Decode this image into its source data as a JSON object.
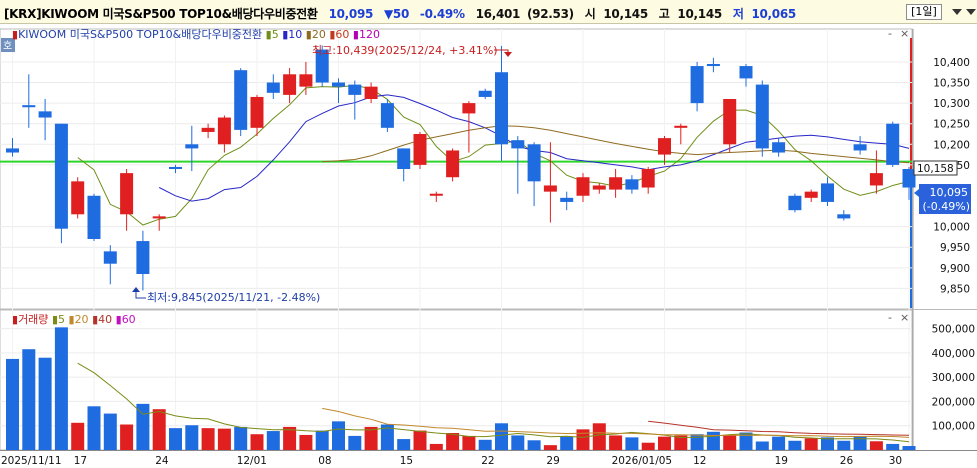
{
  "header": {
    "exchange": "[KRX]",
    "name": "KIWOOM 미국S&P500 TOP10&배당다우비중전환",
    "price": "10,095",
    "change": "▼50",
    "change_pct": "-0.49%",
    "volume": "16,401",
    "volume_ratio": "(92.53)",
    "open_label": "시",
    "open": "10,145",
    "high_label": "고",
    "high": "10,145",
    "low_label": "저",
    "low": "10,065",
    "period": "[1일]"
  },
  "panel": {
    "side_label": "호",
    "close_buttons": [
      "-",
      "×"
    ]
  },
  "colors": {
    "up": "#e02020",
    "down": "#1f6ce0",
    "ma5": "#6f8f19",
    "ma10": "#2727c9",
    "ma20": "#8f6b22",
    "ma60": "#c4391c",
    "ma120": "#b400b4",
    "hline": "#2ed52a",
    "vol_ma5": "#7c8b16",
    "vol_ma20": "#c08a2c",
    "vol_ma40": "#b4342a",
    "vol_ma60": "#c20fc2"
  },
  "price_legend": {
    "name": "KIWOOM 미국S&P500 TOP10&배당다우비중전환",
    "ma": [
      "5",
      "10",
      "20",
      "60",
      "120"
    ]
  },
  "volume_legend": {
    "name": "거래량",
    "ma": [
      "5",
      "20",
      "40",
      "60"
    ]
  },
  "annotations": {
    "high": "최고:10,439(2025/12/24, +3.41%)",
    "low": "최저:9,845(2025/11/21, -2.48%)"
  },
  "price_axis": {
    "ticks": [
      "10,400",
      "10,350",
      "10,300",
      "10,250",
      "10,200",
      "10,150",
      "10,000",
      "9,950",
      "9,900",
      "9,850"
    ],
    "line_value": "10,158",
    "current_price": "10,095",
    "current_pct": "(-0.49%)"
  },
  "volume_axis": {
    "ticks": [
      "500,000",
      "400,000",
      "300,000",
      "200,000",
      "100,000"
    ]
  },
  "x_axis": {
    "labels": [
      "2025/11/11",
      "17",
      "24",
      "12/01",
      "08",
      "15",
      "22",
      "29",
      "2026/01/05",
      "12",
      "19",
      "26",
      "30"
    ]
  },
  "chart_data": {
    "type": "candlestick",
    "price_ylim": [
      9800,
      10480
    ],
    "volume_ylim": [
      0,
      560000
    ],
    "reference_line": 10158,
    "candles": [
      {
        "o": 10190,
        "h": 10215,
        "l": 10170,
        "c": 10180,
        "v": 375000
      },
      {
        "o": 10295,
        "h": 10370,
        "l": 10240,
        "c": 10290,
        "v": 415000
      },
      {
        "o": 10280,
        "h": 10310,
        "l": 10210,
        "c": 10265,
        "v": 380000
      },
      {
        "o": 10250,
        "h": 10250,
        "l": 9960,
        "c": 9995,
        "v": 505000
      },
      {
        "o": 10030,
        "h": 10120,
        "l": 10020,
        "c": 10110,
        "v": 112000
      },
      {
        "o": 10075,
        "h": 10080,
        "l": 9965,
        "c": 9970,
        "v": 180000
      },
      {
        "o": 9940,
        "h": 9955,
        "l": 9860,
        "c": 9910,
        "v": 150000
      },
      {
        "o": 10030,
        "h": 10140,
        "l": 9990,
        "c": 10130,
        "v": 105000
      },
      {
        "o": 9965,
        "h": 9990,
        "l": 9845,
        "c": 9885,
        "v": 190000
      },
      {
        "o": 10020,
        "h": 10030,
        "l": 9990,
        "c": 10025,
        "v": 168000
      },
      {
        "o": 10145,
        "h": 10150,
        "l": 10130,
        "c": 10140,
        "v": 90000
      },
      {
        "o": 10200,
        "h": 10245,
        "l": 10135,
        "c": 10190,
        "v": 102000
      },
      {
        "o": 10230,
        "h": 10250,
        "l": 10215,
        "c": 10240,
        "v": 90000
      },
      {
        "o": 10200,
        "h": 10270,
        "l": 10180,
        "c": 10265,
        "v": 88000
      },
      {
        "o": 10380,
        "h": 10385,
        "l": 10220,
        "c": 10235,
        "v": 95000
      },
      {
        "o": 10240,
        "h": 10320,
        "l": 10220,
        "c": 10315,
        "v": 65000
      },
      {
        "o": 10350,
        "h": 10370,
        "l": 10310,
        "c": 10325,
        "v": 78000
      },
      {
        "o": 10320,
        "h": 10385,
        "l": 10300,
        "c": 10370,
        "v": 95000
      },
      {
        "o": 10340,
        "h": 10400,
        "l": 10320,
        "c": 10370,
        "v": 62000
      },
      {
        "o": 10430,
        "h": 10440,
        "l": 10340,
        "c": 10350,
        "v": 80000
      },
      {
        "o": 10350,
        "h": 10360,
        "l": 10300,
        "c": 10340,
        "v": 118000
      },
      {
        "o": 10345,
        "h": 10355,
        "l": 10260,
        "c": 10320,
        "v": 58000
      },
      {
        "o": 10310,
        "h": 10350,
        "l": 10300,
        "c": 10340,
        "v": 95000
      },
      {
        "o": 10300,
        "h": 10310,
        "l": 10230,
        "c": 10240,
        "v": 105000
      },
      {
        "o": 10190,
        "h": 10190,
        "l": 10110,
        "c": 10140,
        "v": 45000
      },
      {
        "o": 10150,
        "h": 10230,
        "l": 10140,
        "c": 10225,
        "v": 80000
      },
      {
        "o": 10075,
        "h": 10085,
        "l": 10060,
        "c": 10080,
        "v": 25000
      },
      {
        "o": 10120,
        "h": 10190,
        "l": 10110,
        "c": 10185,
        "v": 70000
      },
      {
        "o": 10275,
        "h": 10305,
        "l": 10180,
        "c": 10300,
        "v": 58000
      },
      {
        "o": 10330,
        "h": 10335,
        "l": 10310,
        "c": 10315,
        "v": 42000
      },
      {
        "o": 10375,
        "h": 10439,
        "l": 10160,
        "c": 10200,
        "v": 110000
      },
      {
        "o": 10210,
        "h": 10220,
        "l": 10080,
        "c": 10190,
        "v": 60000
      },
      {
        "o": 10200,
        "h": 10205,
        "l": 10050,
        "c": 10110,
        "v": 40000
      },
      {
        "o": 10085,
        "h": 10205,
        "l": 10010,
        "c": 10100,
        "v": 20000
      },
      {
        "o": 10070,
        "h": 10085,
        "l": 10040,
        "c": 10060,
        "v": 55000
      },
      {
        "o": 10075,
        "h": 10130,
        "l": 10060,
        "c": 10120,
        "v": 85000
      },
      {
        "o": 10090,
        "h": 10105,
        "l": 10080,
        "c": 10100,
        "v": 110000
      },
      {
        "o": 10090,
        "h": 10140,
        "l": 10070,
        "c": 10120,
        "v": 60000
      },
      {
        "o": 10115,
        "h": 10125,
        "l": 10080,
        "c": 10090,
        "v": 52000
      },
      {
        "o": 10095,
        "h": 10145,
        "l": 10080,
        "c": 10140,
        "v": 30000
      },
      {
        "o": 10175,
        "h": 10220,
        "l": 10150,
        "c": 10215,
        "v": 55000
      },
      {
        "o": 10240,
        "h": 10250,
        "l": 10200,
        "c": 10245,
        "v": 60000
      },
      {
        "o": 10390,
        "h": 10400,
        "l": 10280,
        "c": 10300,
        "v": 65000
      },
      {
        "o": 10395,
        "h": 10410,
        "l": 10375,
        "c": 10390,
        "v": 75000
      },
      {
        "o": 10200,
        "h": 10310,
        "l": 10180,
        "c": 10310,
        "v": 62000
      },
      {
        "o": 10390,
        "h": 10395,
        "l": 10340,
        "c": 10360,
        "v": 72000
      },
      {
        "o": 10345,
        "h": 10355,
        "l": 10170,
        "c": 10190,
        "v": 35000
      },
      {
        "o": 10205,
        "h": 10215,
        "l": 10170,
        "c": 10180,
        "v": 55000
      },
      {
        "o": 10075,
        "h": 10080,
        "l": 10035,
        "c": 10040,
        "v": 38000
      },
      {
        "o": 10070,
        "h": 10090,
        "l": 10060,
        "c": 10085,
        "v": 48000
      },
      {
        "o": 10105,
        "h": 10120,
        "l": 10050,
        "c": 10060,
        "v": 52000
      },
      {
        "o": 10030,
        "h": 10040,
        "l": 10015,
        "c": 10020,
        "v": 38000
      },
      {
        "o": 10200,
        "h": 10220,
        "l": 10175,
        "c": 10185,
        "v": 55000
      },
      {
        "o": 10100,
        "h": 10185,
        "l": 10080,
        "c": 10130,
        "v": 36000
      },
      {
        "o": 10250,
        "h": 10255,
        "l": 10145,
        "c": 10150,
        "v": 25000
      },
      {
        "o": 10140,
        "h": 10145,
        "l": 10065,
        "c": 10095,
        "v": 16401
      }
    ],
    "ma5": [
      null,
      null,
      null,
      null,
      10168,
      10138,
      10054,
      10036,
      10004,
      10018,
      10025,
      10068,
      10138,
      10173,
      10193,
      10225,
      10263,
      10296,
      10337,
      10340,
      10339,
      10343,
      10335,
      10309,
      10266,
      10248,
      10195,
      10158,
      10170,
      10198,
      10202,
      10209,
      10178,
      10160,
      10125,
      10110,
      10106,
      10098,
      10107,
      10122,
      10135,
      10165,
      10217,
      10256,
      10283,
      10283,
      10270,
      10232,
      10187,
      10160,
      10123,
      10091,
      10076,
      10085,
      10100,
      10110
    ],
    "ma10": [
      null,
      null,
      null,
      null,
      null,
      null,
      null,
      null,
      null,
      10095,
      10075,
      10062,
      10068,
      10090,
      10095,
      10122,
      10162,
      10206,
      10255,
      10275,
      10293,
      10301,
      10315,
      10320,
      10314,
      10299,
      10283,
      10265,
      10255,
      10240,
      10220,
      10195,
      10185,
      10180,
      10165,
      10160,
      10155,
      10150,
      10145,
      10138,
      10145,
      10150,
      10160,
      10175,
      10190,
      10205,
      10210,
      10215,
      10220,
      10222,
      10218,
      10212,
      10206,
      10203,
      10200,
      10190
    ],
    "ma20": [
      null,
      null,
      null,
      null,
      null,
      null,
      null,
      null,
      null,
      null,
      null,
      null,
      null,
      null,
      null,
      null,
      null,
      null,
      null,
      10158,
      10160,
      10163,
      10172,
      10185,
      10198,
      10210,
      10218,
      10226,
      10234,
      10240,
      10245,
      10244,
      10240,
      10234,
      10226,
      10218,
      10210,
      10202,
      10195,
      10188,
      10182,
      10178,
      10175,
      10178,
      10180,
      10182,
      10184,
      10186,
      10183,
      10178,
      10174,
      10170,
      10166,
      10162,
      10158,
      10155
    ]
  }
}
